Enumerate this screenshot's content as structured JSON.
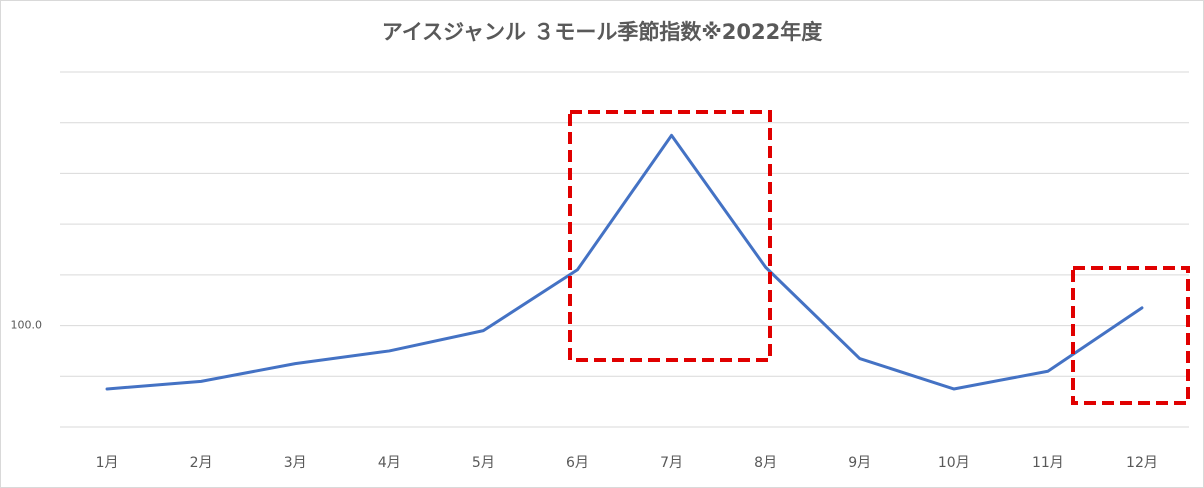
{
  "chart_data": {
    "type": "line",
    "title": "アイスジャンル ３モール季節指数※2022年度",
    "categories": [
      "1月",
      "2月",
      "3月",
      "4月",
      "5月",
      "6月",
      "7月",
      "8月",
      "9月",
      "10月",
      "11月",
      "12月"
    ],
    "values": [
      75,
      78,
      85,
      90,
      98,
      122,
      175,
      123,
      87,
      75,
      82,
      107
    ],
    "color": "#4472c4",
    "ylim": [
      60,
      200
    ],
    "yticks": [
      {
        "value": 60,
        "label": null
      },
      {
        "value": 80,
        "label": null
      },
      {
        "value": 100,
        "label": "100.0"
      },
      {
        "value": 120,
        "label": null
      },
      {
        "value": 140,
        "label": null
      },
      {
        "value": 160,
        "label": null
      },
      {
        "value": 180,
        "label": null
      },
      {
        "value": 200,
        "label": null
      }
    ],
    "grid": true
  }
}
